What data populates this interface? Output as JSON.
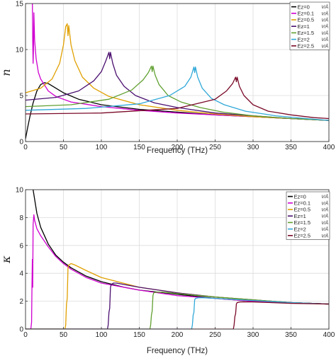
{
  "chart_data": [
    {
      "type": "line",
      "ylabel": "n",
      "xlabel": "Frequency (THz)",
      "xlim": [
        0,
        400
      ],
      "ylim": [
        0,
        15
      ],
      "xticks": [
        "0",
        "50",
        "100",
        "150",
        "200",
        "250",
        "300",
        "350",
        "400"
      ],
      "yticks": [
        "0",
        "5",
        "10",
        "15"
      ],
      "grid": true,
      "legend": "top-right",
      "unit": "V/Å",
      "series": [
        {
          "name": "Ez=0",
          "color": "#000000",
          "x": [
            0,
            3,
            6,
            10,
            15,
            20,
            25,
            30,
            40,
            50,
            70,
            100,
            150,
            200,
            250,
            300,
            350,
            400
          ],
          "y": [
            0.3,
            1.6,
            2.8,
            4.2,
            5.5,
            6.2,
            6.4,
            6.3,
            5.8,
            5.3,
            4.6,
            4.0,
            3.5,
            3.2,
            2.9,
            2.7,
            2.5,
            2.3
          ]
        },
        {
          "name": "Ez=0.1",
          "color": "#d000d0",
          "x": [
            0,
            3,
            6,
            8,
            9,
            9.5,
            10,
            10.5,
            11,
            12,
            14,
            17,
            20,
            30,
            40,
            60,
            100,
            150,
            200,
            250,
            300,
            350,
            400
          ],
          "y": [
            16,
            16,
            16,
            16,
            15.5,
            11,
            8.5,
            10,
            14,
            11,
            9,
            7.5,
            6.8,
            5.5,
            4.9,
            4.3,
            3.8,
            3.4,
            3.1,
            2.9,
            2.7,
            2.5,
            2.3
          ]
        },
        {
          "name": "Ez=0.5",
          "color": "#e0a000",
          "x": [
            0,
            20,
            35,
            45,
            50,
            53,
            55,
            56,
            57,
            60,
            65,
            75,
            90,
            110,
            150,
            200,
            250,
            300,
            350,
            400
          ],
          "y": [
            5.3,
            5.8,
            6.8,
            8.5,
            10.5,
            12.5,
            12.8,
            11.5,
            12.6,
            10.5,
            8.8,
            7.0,
            5.8,
            4.9,
            4.0,
            3.4,
            3.0,
            2.7,
            2.5,
            2.3
          ]
        },
        {
          "name": "Ez=1",
          "color": "#4b1070",
          "x": [
            0,
            40,
            70,
            90,
            100,
            106,
            110,
            111,
            112,
            115,
            120,
            130,
            145,
            170,
            200,
            250,
            300,
            350,
            400
          ],
          "y": [
            4.5,
            4.8,
            5.5,
            6.6,
            7.6,
            8.8,
            9.7,
            9.0,
            9.7,
            8.5,
            7.2,
            6.0,
            5.0,
            4.2,
            3.7,
            3.1,
            2.8,
            2.5,
            2.3
          ]
        },
        {
          "name": "Ez=1.5",
          "color": "#60a030",
          "x": [
            0,
            60,
            110,
            140,
            155,
            162,
            166,
            167,
            168,
            171,
            176,
            188,
            205,
            230,
            260,
            300,
            350,
            400
          ],
          "y": [
            3.8,
            4.0,
            4.6,
            5.6,
            6.7,
            7.5,
            8.2,
            7.6,
            8.2,
            7.2,
            6.2,
            5.0,
            4.3,
            3.7,
            3.2,
            2.8,
            2.5,
            2.3
          ]
        },
        {
          "name": "Ez=2",
          "color": "#30a8d8",
          "x": [
            0,
            80,
            150,
            190,
            210,
            218,
            222,
            223,
            224,
            227,
            233,
            245,
            262,
            290,
            330,
            370,
            400
          ],
          "y": [
            3.4,
            3.6,
            4.1,
            5.0,
            6.0,
            7.0,
            8.1,
            7.5,
            8.1,
            7.0,
            5.8,
            4.7,
            4.0,
            3.3,
            2.8,
            2.5,
            2.3
          ]
        },
        {
          "name": "Ez=2.5",
          "color": "#7a0a28",
          "x": [
            0,
            100,
            200,
            250,
            265,
            273,
            277,
            278,
            279,
            282,
            288,
            300,
            320,
            350,
            380,
            400
          ],
          "y": [
            3.0,
            3.1,
            3.6,
            4.6,
            5.5,
            6.3,
            7.0,
            6.5,
            7.0,
            6.0,
            5.0,
            4.0,
            3.3,
            2.9,
            2.6,
            2.5
          ]
        }
      ]
    },
    {
      "type": "line",
      "ylabel": "κ",
      "xlabel": "Frequency (THz)",
      "xlim": [
        0,
        400
      ],
      "ylim": [
        0,
        10
      ],
      "xticks": [
        "0",
        "50",
        "100",
        "150",
        "200",
        "250",
        "300",
        "350",
        "400"
      ],
      "yticks": [
        "0",
        "2",
        "4",
        "6",
        "8",
        "10"
      ],
      "grid": true,
      "legend": "top-right",
      "unit": "V/Å",
      "series": [
        {
          "name": "Ez=0",
          "color": "#000000",
          "x": [
            0,
            5,
            10,
            15,
            20,
            30,
            40,
            50,
            60,
            80,
            100,
            130,
            150,
            200,
            250,
            300,
            350,
            400
          ],
          "y": [
            11,
            11,
            10,
            8.3,
            7.3,
            6.1,
            5.3,
            4.8,
            4.4,
            3.8,
            3.4,
            3.0,
            2.8,
            2.5,
            2.2,
            2.0,
            1.9,
            1.8
          ]
        },
        {
          "name": "Ez=0.1",
          "color": "#d000d0",
          "x": [
            0,
            7,
            8,
            8.5,
            9,
            9.5,
            10,
            11,
            12,
            15,
            20,
            30,
            40,
            50,
            60,
            80,
            100,
            150,
            200,
            250,
            300,
            350,
            400
          ],
          "y": [
            0,
            0,
            0.5,
            3.0,
            5.0,
            3.0,
            7.5,
            8.2,
            7.8,
            7.2,
            6.7,
            5.9,
            5.2,
            4.7,
            4.3,
            3.7,
            3.3,
            2.8,
            2.4,
            2.2,
            2.0,
            1.9,
            1.8
          ]
        },
        {
          "name": "Ez=0.5",
          "color": "#e0a000",
          "x": [
            0,
            52,
            53,
            54,
            55,
            56,
            57,
            60,
            65,
            80,
            100,
            150,
            200,
            250,
            300,
            350,
            400
          ],
          "y": [
            0,
            0,
            0.3,
            1.8,
            2.2,
            4.4,
            4.6,
            4.7,
            4.6,
            4.2,
            3.7,
            3.0,
            2.6,
            2.3,
            2.1,
            1.9,
            1.8
          ]
        },
        {
          "name": "Ez=1",
          "color": "#4b1070",
          "x": [
            0,
            108,
            109,
            110,
            111,
            112,
            113,
            116,
            120,
            130,
            150,
            200,
            250,
            300,
            350,
            400
          ],
          "y": [
            0,
            0,
            0.3,
            1.2,
            1.5,
            3.0,
            3.2,
            3.3,
            3.3,
            3.2,
            3.0,
            2.6,
            2.3,
            2.1,
            1.9,
            1.8
          ]
        },
        {
          "name": "Ez=1.5",
          "color": "#60a030",
          "x": [
            0,
            164,
            165,
            166,
            167,
            168,
            169,
            172,
            180,
            200,
            250,
            300,
            350,
            400
          ],
          "y": [
            0,
            0,
            0.3,
            1.0,
            1.3,
            2.4,
            2.6,
            2.65,
            2.65,
            2.55,
            2.3,
            2.1,
            1.9,
            1.8
          ]
        },
        {
          "name": "Ez=2",
          "color": "#30a8d8",
          "x": [
            0,
            219,
            220,
            221,
            222,
            223,
            224,
            228,
            235,
            250,
            300,
            350,
            400
          ],
          "y": [
            0,
            0,
            0.3,
            1.0,
            1.2,
            2.1,
            2.2,
            2.25,
            2.25,
            2.2,
            2.05,
            1.9,
            1.8
          ]
        },
        {
          "name": "Ez=2.5",
          "color": "#7a0a28",
          "x": [
            0,
            274,
            275,
            276,
            277,
            278,
            279,
            283,
            290,
            300,
            350,
            400
          ],
          "y": [
            0,
            0,
            0.3,
            0.9,
            1.1,
            1.8,
            1.9,
            1.95,
            1.95,
            1.95,
            1.85,
            1.8
          ]
        }
      ]
    }
  ]
}
